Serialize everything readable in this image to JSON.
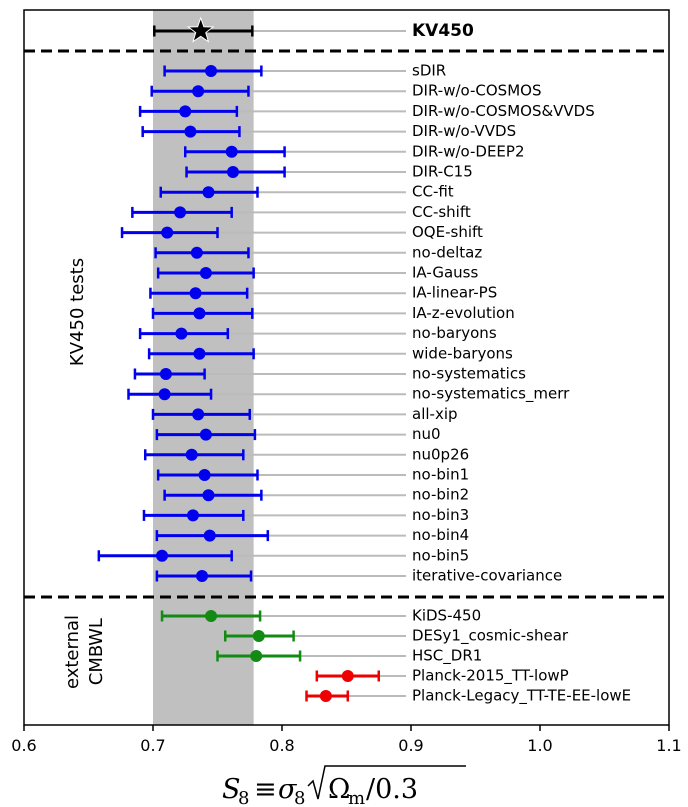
{
  "chart_data": {
    "type": "errorbar",
    "xlim": [
      0.6,
      1.1
    ],
    "x_ticks": [
      "0.6",
      "0.7",
      "0.8",
      "0.9",
      "1.0",
      "1.1"
    ],
    "band": [
      0.7,
      0.778
    ],
    "legend_star_label": "KV450",
    "panel_labels": {
      "tests": "KV450 tests",
      "external": "external",
      "wl": "WL",
      "cmb": "CMB"
    },
    "colors": {
      "kv450": "#000000",
      "tests": "#0000ee",
      "wl": "#138a13",
      "cmb": "#ee0000",
      "band": "#c0c0c0",
      "guide": "#bbbbbb"
    },
    "points": [
      {
        "label": "KV450",
        "group": "kv450",
        "value": 0.737,
        "lo": 0.701,
        "hi": 0.777
      },
      {
        "label": "sDIR",
        "group": "tests",
        "value": 0.745,
        "lo": 0.709,
        "hi": 0.784
      },
      {
        "label": "DIR-w/o-COSMOS",
        "group": "tests",
        "value": 0.735,
        "lo": 0.699,
        "hi": 0.774
      },
      {
        "label": "DIR-w/o-COSMOS&VVDS",
        "group": "tests",
        "value": 0.725,
        "lo": 0.69,
        "hi": 0.765
      },
      {
        "label": "DIR-w/o-VVDS",
        "group": "tests",
        "value": 0.729,
        "lo": 0.692,
        "hi": 0.767
      },
      {
        "label": "DIR-w/o-DEEP2",
        "group": "tests",
        "value": 0.761,
        "lo": 0.725,
        "hi": 0.802
      },
      {
        "label": "DIR-C15",
        "group": "tests",
        "value": 0.762,
        "lo": 0.726,
        "hi": 0.802
      },
      {
        "label": "CC-fit",
        "group": "tests",
        "value": 0.743,
        "lo": 0.706,
        "hi": 0.781
      },
      {
        "label": "CC-shift",
        "group": "tests",
        "value": 0.721,
        "lo": 0.684,
        "hi": 0.761
      },
      {
        "label": "OQE-shift",
        "group": "tests",
        "value": 0.711,
        "lo": 0.676,
        "hi": 0.75
      },
      {
        "label": "no-deltaz",
        "group": "tests",
        "value": 0.734,
        "lo": 0.702,
        "hi": 0.774
      },
      {
        "label": "IA-Gauss",
        "group": "tests",
        "value": 0.741,
        "lo": 0.704,
        "hi": 0.778
      },
      {
        "label": "IA-linear-PS",
        "group": "tests",
        "value": 0.733,
        "lo": 0.698,
        "hi": 0.773
      },
      {
        "label": "IA-z-evolution",
        "group": "tests",
        "value": 0.736,
        "lo": 0.7,
        "hi": 0.777
      },
      {
        "label": "no-baryons",
        "group": "tests",
        "value": 0.722,
        "lo": 0.69,
        "hi": 0.758
      },
      {
        "label": "wide-baryons",
        "group": "tests",
        "value": 0.736,
        "lo": 0.697,
        "hi": 0.778
      },
      {
        "label": "no-systematics",
        "group": "tests",
        "value": 0.71,
        "lo": 0.686,
        "hi": 0.74
      },
      {
        "label": "no-systematics_merr",
        "group": "tests",
        "value": 0.709,
        "lo": 0.681,
        "hi": 0.745
      },
      {
        "label": "all-xip",
        "group": "tests",
        "value": 0.735,
        "lo": 0.7,
        "hi": 0.775
      },
      {
        "label": "nu0",
        "group": "tests",
        "value": 0.741,
        "lo": 0.703,
        "hi": 0.779
      },
      {
        "label": "nu0p26",
        "group": "tests",
        "value": 0.73,
        "lo": 0.694,
        "hi": 0.77
      },
      {
        "label": "no-bin1",
        "group": "tests",
        "value": 0.74,
        "lo": 0.704,
        "hi": 0.781
      },
      {
        "label": "no-bin2",
        "group": "tests",
        "value": 0.743,
        "lo": 0.709,
        "hi": 0.784
      },
      {
        "label": "no-bin3",
        "group": "tests",
        "value": 0.731,
        "lo": 0.693,
        "hi": 0.77
      },
      {
        "label": "no-bin4",
        "group": "tests",
        "value": 0.744,
        "lo": 0.703,
        "hi": 0.789
      },
      {
        "label": "no-bin5",
        "group": "tests",
        "value": 0.707,
        "lo": 0.658,
        "hi": 0.761
      },
      {
        "label": "iterative-covariance",
        "group": "tests",
        "value": 0.738,
        "lo": 0.703,
        "hi": 0.776
      },
      {
        "label": "KiDS-450",
        "group": "wl",
        "value": 0.745,
        "lo": 0.707,
        "hi": 0.783
      },
      {
        "label": "DESy1_cosmic-shear",
        "group": "wl",
        "value": 0.782,
        "lo": 0.756,
        "hi": 0.809
      },
      {
        "label": "HSC_DR1",
        "group": "wl",
        "value": 0.78,
        "lo": 0.75,
        "hi": 0.814
      },
      {
        "label": "Planck-2015_TT-lowP",
        "group": "cmb",
        "value": 0.851,
        "lo": 0.827,
        "hi": 0.875
      },
      {
        "label": "Planck-Legacy_TT-TE-EE-lowE",
        "group": "cmb",
        "value": 0.834,
        "lo": 0.819,
        "hi": 0.851
      }
    ]
  }
}
